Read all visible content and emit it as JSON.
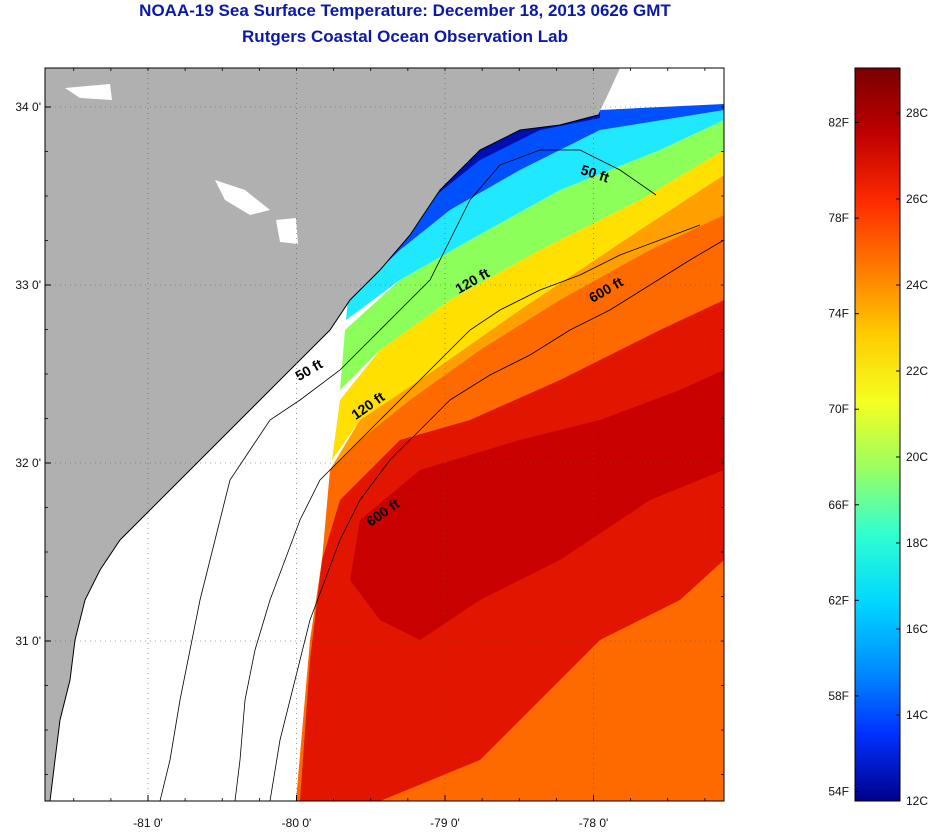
{
  "header": {
    "title_line_1": "NOAA-19 Sea Surface Temperature:  December 18, 2013 0626 GMT",
    "title_line_2": "Rutgers Coastal Ocean Observation Lab"
  },
  "map": {
    "lon_ticks": [
      {
        "value": -81,
        "label": "-81 0'"
      },
      {
        "value": -80,
        "label": "-80 0'"
      },
      {
        "value": -79,
        "label": "-79 0'"
      },
      {
        "value": -78,
        "label": "-78 0'"
      }
    ],
    "lat_ticks": [
      {
        "value": 34,
        "label": "34 0'"
      },
      {
        "value": 33,
        "label": "33 0'"
      },
      {
        "value": 32,
        "label": "32 0'"
      },
      {
        "value": 31,
        "label": "31 0'"
      }
    ],
    "contour_labels": [
      {
        "text": "50 ft",
        "lon": -78.0,
        "lat": 33.6
      },
      {
        "text": "50 ft",
        "lon": -79.9,
        "lat": 32.5
      },
      {
        "text": "120 ft",
        "lon": -78.8,
        "lat": 33.0
      },
      {
        "text": "120 ft",
        "lon": -79.5,
        "lat": 32.3
      },
      {
        "text": "600 ft",
        "lon": -77.9,
        "lat": 32.95
      },
      {
        "text": "600 ft",
        "lon": -79.4,
        "lat": 31.7
      }
    ],
    "colors": {
      "land": "#b0b0b0",
      "coast_line": "#000000",
      "no_data": "#ffffff",
      "contour_line": "#000000",
      "frame": "#000000"
    }
  },
  "colorbar": {
    "fahrenheit_labels": [
      "82F",
      "78F",
      "74F",
      "70F",
      "66F",
      "62F",
      "58F",
      "54F"
    ],
    "celsius_labels": [
      "28C",
      "26C",
      "24C",
      "22C",
      "20C",
      "18C",
      "16C",
      "14C",
      "12C"
    ],
    "colors": [
      "#7a0000",
      "#c00000",
      "#ff2a00",
      "#ff7a00",
      "#ffcc00",
      "#f4ff20",
      "#9bff60",
      "#30ffd0",
      "#00d8ff",
      "#0090ff",
      "#0030ff",
      "#00008a"
    ]
  }
}
